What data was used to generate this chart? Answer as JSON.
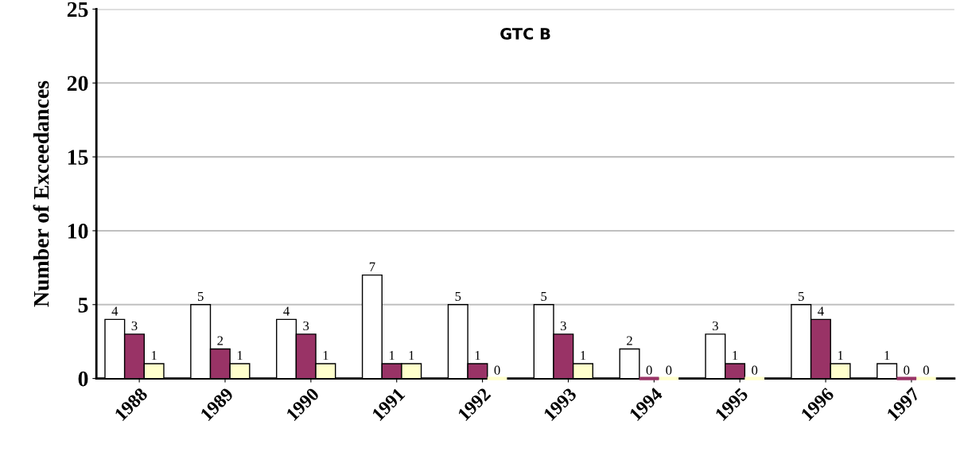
{
  "chart_data": {
    "type": "bar",
    "title": "GTC B",
    "ylabel": "Number of Exceedances",
    "categories": [
      "1988",
      "1989",
      "1990",
      "1991",
      "1992",
      "1993",
      "1994",
      "1995",
      "1996",
      "1997"
    ],
    "series": [
      {
        "color": "#ffffff",
        "values": [
          4,
          5,
          4,
          7,
          5,
          5,
          2,
          3,
          5,
          1
        ]
      },
      {
        "color": "#993366",
        "values": [
          3,
          2,
          3,
          1,
          1,
          3,
          0,
          1,
          4,
          0
        ]
      },
      {
        "color": "#ffffcc",
        "values": [
          1,
          1,
          1,
          1,
          0,
          1,
          0,
          0,
          1,
          0
        ]
      }
    ],
    "ylim": [
      0,
      25
    ],
    "yticks": [
      0,
      5,
      10,
      15,
      20,
      25
    ],
    "grid": "y",
    "data_labels": true
  }
}
